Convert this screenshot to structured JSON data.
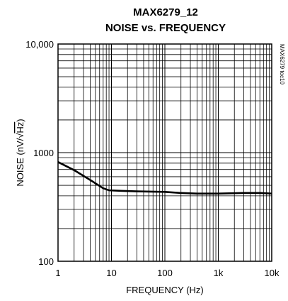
{
  "chart_data": {
    "type": "line",
    "title_line1": "MAX6279_12",
    "title_line2": "NOISE vs. FREQUENCY",
    "xlabel": "FREQUENCY (Hz)",
    "ylabel": "NOISE (nV/√Hz)",
    "ylabel_prefix": "NOISE (nV/",
    "ylabel_radical": "√",
    "ylabel_radicand": "Hz",
    "ylabel_suffix": ")",
    "side_label": "MAX6279 toc10",
    "x_scale": "log",
    "y_scale": "log",
    "xlim": [
      1,
      10000
    ],
    "ylim": [
      100,
      10000
    ],
    "grid": true,
    "x_ticks": [
      {
        "value": 1,
        "label": "1"
      },
      {
        "value": 10,
        "label": "10"
      },
      {
        "value": 100,
        "label": "100"
      },
      {
        "value": 1000,
        "label": "1k"
      },
      {
        "value": 10000,
        "label": "10k"
      }
    ],
    "y_ticks": [
      {
        "value": 100,
        "label": "100"
      },
      {
        "value": 1000,
        "label": "1000"
      },
      {
        "value": 10000,
        "label": "10,000"
      }
    ],
    "series": [
      {
        "color": "#000000",
        "x": [
          1,
          2,
          4,
          7,
          9,
          15,
          30,
          100,
          200,
          400,
          1000,
          3000,
          6000,
          10000
        ],
        "y": [
          820,
          690,
          560,
          470,
          450,
          445,
          440,
          435,
          425,
          420,
          420,
          425,
          425,
          420
        ]
      }
    ]
  }
}
